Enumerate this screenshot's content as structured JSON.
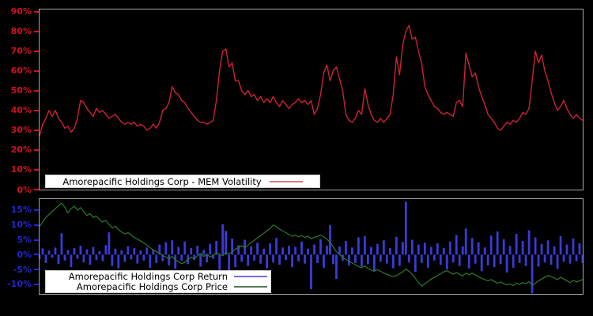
{
  "figure": {
    "background": "#000000",
    "axes_border_color": "#a6a6a6",
    "legend_background": "#ffffff"
  },
  "chart_data": [
    {
      "id": "volatility-chart",
      "type": "line",
      "title": "",
      "xlabel": "",
      "ylabel": "",
      "grid": false,
      "legend_position": "lower-left",
      "ylim": [
        0,
        91
      ],
      "tick_color": "#cc1122",
      "yticks": [
        {
          "label": "90%",
          "value": 90
        },
        {
          "label": "80%",
          "value": 80
        },
        {
          "label": "70%",
          "value": 70
        },
        {
          "label": "60%",
          "value": 60
        },
        {
          "label": "50%",
          "value": 50
        },
        {
          "label": "40%",
          "value": 40
        },
        {
          "label": "30%",
          "value": 30
        },
        {
          "label": "20%",
          "value": 20
        },
        {
          "label": "10%",
          "value": 10
        },
        {
          "label": "0%",
          "value": 0
        }
      ],
      "series": [
        {
          "name": "Amorepacific Holdings Corp - MEM Volatility",
          "type": "line",
          "color": "#cc2233",
          "legend_sample_color": "#e07a7a",
          "values": [
            27,
            33,
            36,
            40,
            37,
            40,
            36,
            34,
            31,
            32,
            29,
            31,
            36,
            45,
            44,
            41,
            39,
            37,
            41,
            39,
            40,
            38,
            36,
            37,
            38,
            36,
            34,
            33,
            34,
            33,
            34,
            32,
            33,
            32,
            30,
            31,
            33,
            31,
            34,
            40,
            41,
            44,
            52,
            49,
            48,
            45,
            44,
            41,
            39,
            37,
            35,
            34,
            34,
            33,
            34,
            35,
            45,
            60,
            70,
            71,
            62,
            64,
            55,
            55,
            50,
            48,
            50,
            47,
            48,
            45,
            47,
            44,
            46,
            44,
            47,
            44,
            42,
            45,
            43,
            41,
            43,
            44,
            46,
            44,
            45,
            43,
            45,
            38,
            41,
            48,
            59,
            63,
            55,
            60,
            62,
            56,
            50,
            38,
            35,
            34,
            36,
            40,
            38,
            51,
            43,
            38,
            35,
            34,
            36,
            34,
            36,
            38,
            48,
            67,
            58,
            73,
            80,
            83,
            76,
            77,
            70,
            64,
            52,
            48,
            45,
            42,
            41,
            39,
            38,
            39,
            38,
            37,
            44,
            45,
            42,
            69,
            63,
            57,
            59,
            52,
            47,
            43,
            38,
            36,
            34,
            31,
            30,
            32,
            34,
            33,
            35,
            34,
            36,
            39,
            38,
            41,
            55,
            70,
            64,
            68,
            60,
            55,
            49,
            44,
            40,
            42,
            45,
            41,
            38,
            36,
            38,
            36,
            35
          ]
        }
      ]
    },
    {
      "id": "return-price-chart",
      "type": "bar",
      "title": "",
      "xlabel": "",
      "ylabel": "",
      "grid": false,
      "legend_position": "lower-left",
      "ylim": [
        -13.2,
        18.7
      ],
      "tick_color": "#2525cc",
      "yticks": [
        {
          "label": "15%",
          "value": 15
        },
        {
          "label": "10%",
          "value": 10
        },
        {
          "label": "5%",
          "value": 5
        },
        {
          "label": "0%",
          "value": 0
        },
        {
          "label": "-5%",
          "value": -5
        },
        {
          "label": "-10%",
          "value": -10
        }
      ],
      "series": [
        {
          "name": "Amorepacific Holdings Corp Return",
          "type": "bar",
          "color": "#3a3ada",
          "legend_sample_color": "#7070e0",
          "values": [
            -1.5,
            2.1,
            -2.8,
            1.4,
            -1.0,
            2.4,
            -3.2,
            7.2,
            -2.0,
            1.6,
            -4.2,
            2.2,
            -1.4,
            3.0,
            -2.6,
            1.8,
            -3.4,
            2.6,
            -1.8,
            1.2,
            -2.2,
            3.2,
            7.5,
            -3.8,
            2.0,
            -4.6,
            1.5,
            -2.4,
            2.8,
            -1.6,
            2.2,
            -3.0,
            1.4,
            -2.0,
            2.4,
            -4.4,
            1.8,
            -2.8,
            3.4,
            -2.2,
            4.2,
            -3.6,
            4.8,
            -4.8,
            2.6,
            -2.0,
            4.4,
            -3.2,
            2.2,
            -1.8,
            3.0,
            -4.0,
            1.6,
            -2.6,
            3.6,
            -1.4,
            4.6,
            -5.2,
            10.2,
            8.0,
            -6.0,
            5.4,
            -4.2,
            3.2,
            -2.4,
            5.0,
            -3.8,
            2.8,
            -2.0,
            4.0,
            -3.0,
            2.0,
            -4.6,
            3.8,
            -2.6,
            5.6,
            -3.4,
            2.4,
            -1.8,
            3.0,
            -4.2,
            2.6,
            -2.2,
            4.4,
            -3.0,
            2.0,
            -11.6,
            3.4,
            -2.8,
            5.2,
            -4.4,
            3.0,
            10.0,
            -3.2,
            -8.2,
            2.8,
            -2.0,
            4.6,
            -3.6,
            2.4,
            -2.8,
            5.8,
            -4.0,
            6.2,
            -3.2,
            2.6,
            -5.4,
            3.6,
            -2.4,
            4.8,
            -3.0,
            2.2,
            -4.6,
            6.0,
            -3.8,
            4.2,
            17.8,
            -2.6,
            5.0,
            -5.8,
            3.4,
            -2.8,
            4.0,
            -4.4,
            2.6,
            -2.0,
            3.8,
            -3.4,
            2.2,
            -5.0,
            4.4,
            -2.6,
            6.6,
            -3.8,
            2.8,
            8.8,
            -4.6,
            5.6,
            -3.0,
            4.2,
            -5.6,
            2.4,
            -3.6,
            6.4,
            -4.2,
            7.8,
            -3.2,
            5.2,
            -6.0,
            3.0,
            -4.4,
            7.0,
            -2.8,
            4.6,
            -3.8,
            8.2,
            -13.0,
            5.8,
            -4.0,
            3.6,
            -2.6,
            4.8,
            -3.4,
            2.8,
            -4.8,
            6.2,
            -2.4,
            3.4,
            -3.0,
            5.4,
            -2.2,
            3.8,
            -2.8
          ]
        },
        {
          "name": "Amorepacific Holdings Corp Price",
          "type": "line",
          "color": "#2a7a2a",
          "legend_sample_color": "#4f7f4f",
          "values": [
            9.5,
            11.0,
            12.5,
            13.5,
            14.5,
            15.5,
            16.5,
            17.3,
            16.0,
            14.0,
            15.5,
            16.3,
            15.0,
            15.8,
            14.5,
            13.2,
            13.8,
            12.5,
            13.0,
            11.8,
            11.0,
            11.5,
            10.2,
            9.0,
            9.6,
            8.4,
            7.6,
            7.0,
            7.4,
            6.6,
            5.8,
            5.2,
            4.6,
            4.0,
            3.2,
            2.4,
            1.6,
            1.0,
            0.4,
            -0.2,
            -0.8,
            -1.4,
            -0.6,
            -1.8,
            -2.4,
            -3.0,
            -2.6,
            -1.6,
            -0.8,
            -1.4,
            -0.4,
            0.4,
            -0.6,
            0.2,
            -0.8,
            -0.2,
            0.6,
            0.2,
            -0.4,
            0.8,
            0.2,
            1.0,
            1.8,
            2.4,
            3.0,
            2.4,
            3.2,
            4.0,
            4.8,
            5.6,
            6.4,
            7.2,
            8.0,
            8.8,
            10.0,
            9.4,
            8.6,
            8.0,
            7.4,
            6.8,
            6.2,
            6.6,
            6.0,
            6.4,
            5.8,
            6.2,
            5.4,
            5.8,
            6.2,
            6.6,
            6.0,
            5.2,
            4.2,
            2.6,
            1.0,
            0.0,
            -0.8,
            -1.6,
            -2.2,
            -2.8,
            -3.4,
            -4.0,
            -4.4,
            -3.8,
            -4.6,
            -5.2,
            -5.6,
            -5.0,
            -5.6,
            -6.2,
            -6.6,
            -7.0,
            -7.4,
            -7.0,
            -6.4,
            -5.8,
            -4.8,
            -5.6,
            -6.6,
            -8.0,
            -9.4,
            -10.6,
            -9.8,
            -9.0,
            -8.2,
            -7.6,
            -7.0,
            -6.4,
            -5.8,
            -5.4,
            -6.0,
            -6.6,
            -6.0,
            -6.6,
            -7.2,
            -6.2,
            -6.8,
            -6.2,
            -6.8,
            -7.4,
            -8.0,
            -8.4,
            -8.8,
            -8.4,
            -9.0,
            -9.6,
            -9.2,
            -9.8,
            -10.2,
            -9.8,
            -10.4,
            -9.6,
            -10.0,
            -9.4,
            -9.8,
            -9.0,
            -10.4,
            -9.6,
            -8.8,
            -8.2,
            -7.6,
            -7.0,
            -7.4,
            -7.8,
            -8.4,
            -7.6,
            -8.2,
            -8.8,
            -9.4,
            -8.6,
            -9.2,
            -8.8,
            -8.4
          ]
        }
      ]
    }
  ]
}
